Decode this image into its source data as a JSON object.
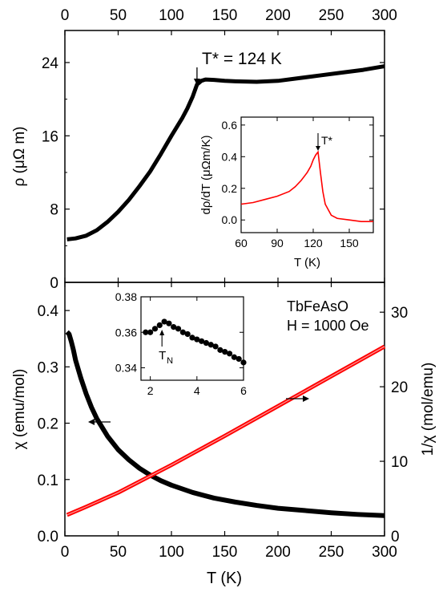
{
  "chart_data": [
    {
      "panel": "top",
      "type": "line",
      "xlabel_top": "",
      "ylabel": "ρ (μΩ m)",
      "xlim": [
        0,
        300
      ],
      "ylim": [
        0,
        27.5
      ],
      "xticks": [
        0,
        50,
        100,
        150,
        200,
        250,
        300
      ],
      "yticks": [
        0,
        8,
        16,
        24
      ],
      "annotation": {
        "text": "T* = 124 K",
        "x": 124,
        "y": 21.8
      },
      "series": [
        {
          "color": "#000000",
          "x": [
            2,
            10,
            20,
            30,
            40,
            50,
            60,
            70,
            80,
            90,
            100,
            110,
            115,
            120,
            124,
            128,
            132,
            140,
            150,
            160,
            180,
            200,
            220,
            240,
            260,
            280,
            300
          ],
          "y": [
            4.7,
            4.8,
            5.1,
            5.7,
            6.6,
            7.7,
            9.0,
            10.5,
            12.1,
            14.0,
            16.0,
            17.9,
            19.0,
            20.3,
            21.6,
            22.0,
            22.15,
            22.1,
            22.0,
            21.95,
            21.9,
            22.0,
            22.3,
            22.6,
            22.9,
            23.2,
            23.6
          ]
        }
      ]
    },
    {
      "panel": "top-inset",
      "type": "line",
      "xlabel": "T (K)",
      "ylabel": "dρ/dT (μΩm/K)",
      "xlim": [
        60,
        170
      ],
      "ylim": [
        -0.08,
        0.65
      ],
      "xticks": [
        60,
        90,
        120,
        150
      ],
      "yticks": [
        0.0,
        0.2,
        0.4,
        0.6
      ],
      "annotation": {
        "text": "T*",
        "x": 124
      },
      "series": [
        {
          "color": "#ff0000",
          "x": [
            60,
            70,
            80,
            90,
            100,
            105,
            110,
            115,
            118,
            120,
            122,
            124,
            126,
            128,
            130,
            135,
            140,
            150,
            160,
            170
          ],
          "y": [
            0.1,
            0.11,
            0.13,
            0.15,
            0.18,
            0.21,
            0.25,
            0.3,
            0.34,
            0.38,
            0.41,
            0.43,
            0.3,
            0.18,
            0.1,
            0.03,
            0.01,
            0.0,
            -0.01,
            -0.01
          ]
        }
      ]
    },
    {
      "panel": "bottom",
      "type": "line",
      "xlabel": "T (K)",
      "ylabel": "χ (emu/mol)",
      "ylabel_right": "1/χ (mol/emu)",
      "xlim": [
        0,
        300
      ],
      "ylim": [
        0,
        0.45
      ],
      "ylim_right": [
        0,
        34
      ],
      "xticks": [
        0,
        50,
        100,
        150,
        200,
        250,
        300
      ],
      "yticks": [
        0.0,
        0.1,
        0.2,
        0.3,
        0.4
      ],
      "yticks_right": [
        0,
        10,
        20,
        30
      ],
      "legend_text": [
        "TbFeAsO",
        "H = 1000 Oe"
      ],
      "series": [
        {
          "axis": "left",
          "color": "#000000",
          "x": [
            2,
            4,
            6,
            8,
            10,
            15,
            20,
            25,
            30,
            40,
            50,
            60,
            70,
            80,
            90,
            100,
            120,
            140,
            160,
            180,
            200,
            225,
            250,
            275,
            300
          ],
          "y": [
            0.362,
            0.358,
            0.345,
            0.33,
            0.312,
            0.28,
            0.252,
            0.228,
            0.208,
            0.177,
            0.153,
            0.135,
            0.12,
            0.108,
            0.098,
            0.09,
            0.077,
            0.067,
            0.06,
            0.054,
            0.049,
            0.045,
            0.041,
            0.038,
            0.036
          ]
        },
        {
          "axis": "right",
          "color": "#ff0000",
          "x": [
            2,
            20,
            50,
            100,
            150,
            200,
            250,
            300
          ],
          "y": [
            2.8,
            3.9,
            5.8,
            9.5,
            13.4,
            17.4,
            21.4,
            25.4
          ]
        }
      ]
    },
    {
      "panel": "bottom-inset",
      "type": "scatter",
      "xlim": [
        1.6,
        6
      ],
      "ylim": [
        0.333,
        0.38
      ],
      "xticks": [
        2,
        4,
        6
      ],
      "yticks": [
        0.34,
        0.36,
        0.38
      ],
      "annotation": {
        "text": "T",
        "subscript": "N",
        "x": 2.5
      },
      "series": [
        {
          "color": "#000000",
          "x": [
            1.8,
            2.0,
            2.2,
            2.4,
            2.6,
            2.8,
            3.0,
            3.2,
            3.4,
            3.6,
            3.8,
            4.0,
            4.2,
            4.4,
            4.6,
            4.8,
            5.0,
            5.2,
            5.4,
            5.6,
            5.8,
            6.0
          ],
          "y": [
            0.36,
            0.36,
            0.362,
            0.364,
            0.366,
            0.365,
            0.363,
            0.362,
            0.36,
            0.359,
            0.357,
            0.356,
            0.355,
            0.354,
            0.353,
            0.352,
            0.35,
            0.349,
            0.348,
            0.346,
            0.345,
            0.343
          ]
        }
      ]
    }
  ]
}
